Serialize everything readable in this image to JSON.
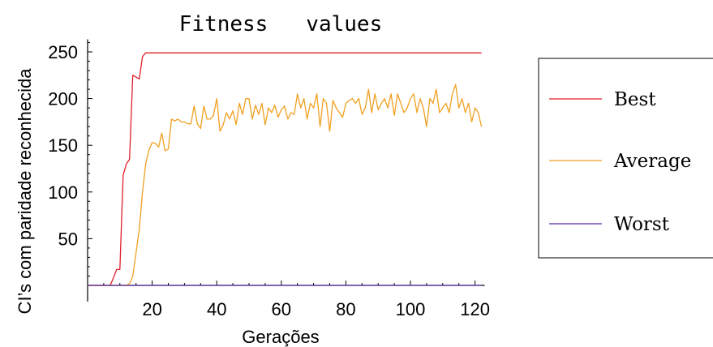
{
  "chart_data": {
    "type": "line",
    "title": "Fitness   values",
    "xlabel": "Gerações",
    "ylabel": "CI’s com paridade reconhecida",
    "xlim": [
      0,
      123
    ],
    "ylim": [
      0,
      260
    ],
    "x_ticks": [
      20,
      40,
      60,
      80,
      100,
      120
    ],
    "y_ticks": [
      50,
      100,
      150,
      200,
      250
    ],
    "grid": false,
    "legend_position": "right",
    "series": [
      {
        "name": "Best",
        "color": "#e0202a",
        "x": [
          0,
          7,
          8,
          9,
          10,
          11,
          12,
          13,
          14,
          15,
          16,
          17,
          18,
          19,
          20,
          30,
          40,
          50,
          60,
          70,
          80,
          90,
          100,
          110,
          120,
          122
        ],
        "y": [
          0,
          0,
          8,
          17,
          17,
          118,
          130,
          135,
          225,
          223,
          221,
          245,
          249,
          249,
          249,
          249,
          249,
          249,
          249,
          249,
          249,
          249,
          249,
          249,
          249,
          249
        ]
      },
      {
        "name": "Average",
        "color": "#f0a020",
        "x": [
          0,
          1,
          2,
          3,
          4,
          5,
          6,
          7,
          8,
          9,
          10,
          11,
          12,
          13,
          14,
          15,
          16,
          17,
          18,
          19,
          20,
          21,
          22,
          23,
          24,
          25,
          26,
          27,
          28,
          29,
          30,
          31,
          32,
          33,
          34,
          35,
          36,
          37,
          38,
          39,
          40,
          41,
          42,
          43,
          44,
          45,
          46,
          47,
          48,
          49,
          50,
          51,
          52,
          53,
          54,
          55,
          56,
          57,
          58,
          59,
          60,
          61,
          62,
          63,
          64,
          65,
          66,
          67,
          68,
          69,
          70,
          71,
          72,
          73,
          74,
          75,
          76,
          77,
          78,
          79,
          80,
          81,
          82,
          83,
          84,
          85,
          86,
          87,
          88,
          89,
          90,
          91,
          92,
          93,
          94,
          95,
          96,
          97,
          98,
          99,
          100,
          101,
          102,
          103,
          104,
          105,
          106,
          107,
          108,
          109,
          110,
          111,
          112,
          113,
          114,
          115,
          116,
          117,
          118,
          119,
          120,
          121,
          122
        ],
        "y": [
          0,
          0,
          0,
          0,
          0,
          0,
          0,
          0,
          0,
          0,
          0,
          0,
          0,
          2,
          10,
          35,
          60,
          100,
          130,
          145,
          153,
          152,
          148,
          163,
          144,
          146,
          178,
          176,
          178,
          175,
          175,
          173,
          173,
          192,
          173,
          168,
          192,
          178,
          178,
          182,
          200,
          165,
          172,
          185,
          178,
          187,
          172,
          195,
          183,
          200,
          200,
          178,
          193,
          183,
          195,
          172,
          190,
          185,
          193,
          180,
          188,
          192,
          178,
          185,
          183,
          205,
          190,
          200,
          178,
          195,
          190,
          205,
          170,
          200,
          195,
          165,
          198,
          190,
          185,
          180,
          195,
          198,
          200,
          195,
          200,
          183,
          190,
          210,
          185,
          205,
          188,
          195,
          200,
          190,
          205,
          182,
          205,
          195,
          185,
          190,
          200,
          205,
          185,
          200,
          190,
          170,
          200,
          195,
          210,
          185,
          190,
          195,
          185,
          205,
          215,
          190,
          200,
          185,
          195,
          175,
          190,
          185,
          170
        ]
      },
      {
        "name": "Worst",
        "color": "#5a2fa8",
        "x": [
          0,
          20,
          40,
          60,
          80,
          100,
          120,
          122
        ],
        "y": [
          0,
          0,
          0,
          0,
          0,
          0,
          0,
          0
        ]
      }
    ]
  }
}
